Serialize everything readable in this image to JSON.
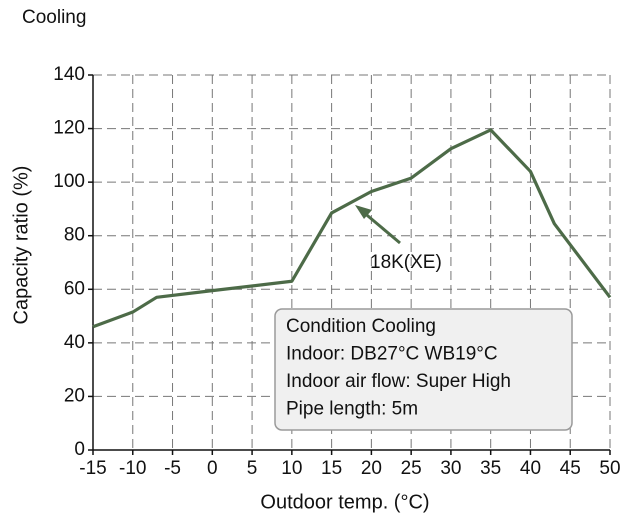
{
  "chart_data": {
    "type": "line",
    "title": "Cooling",
    "x_label": "Outdoor temp. (°C)",
    "y_label": "Capacity ratio (%)",
    "x": [
      -15,
      -10,
      -7,
      0,
      10,
      15,
      20,
      25,
      30,
      35,
      40,
      43,
      50
    ],
    "series": [
      {
        "name": "18K(XE)",
        "color": "#4d6b48",
        "values": [
          46,
          51.5,
          57,
          59.5,
          63,
          88.5,
          96.5,
          101.5,
          112.5,
          119.5,
          104,
          84.5,
          57
        ]
      }
    ],
    "xlim": [
      -15,
      50
    ],
    "xticks": [
      -15,
      -10,
      -5,
      0,
      5,
      10,
      15,
      20,
      25,
      30,
      35,
      40,
      45,
      50
    ],
    "ylim": [
      0,
      140
    ],
    "yticks": [
      0,
      20,
      40,
      60,
      80,
      100,
      120,
      140
    ],
    "grid": true,
    "notes": [
      "Condition Cooling",
      "Indoor: DB27°C WB19°C",
      "Indoor air flow: Super High",
      "Pipe length: 5m"
    ]
  }
}
